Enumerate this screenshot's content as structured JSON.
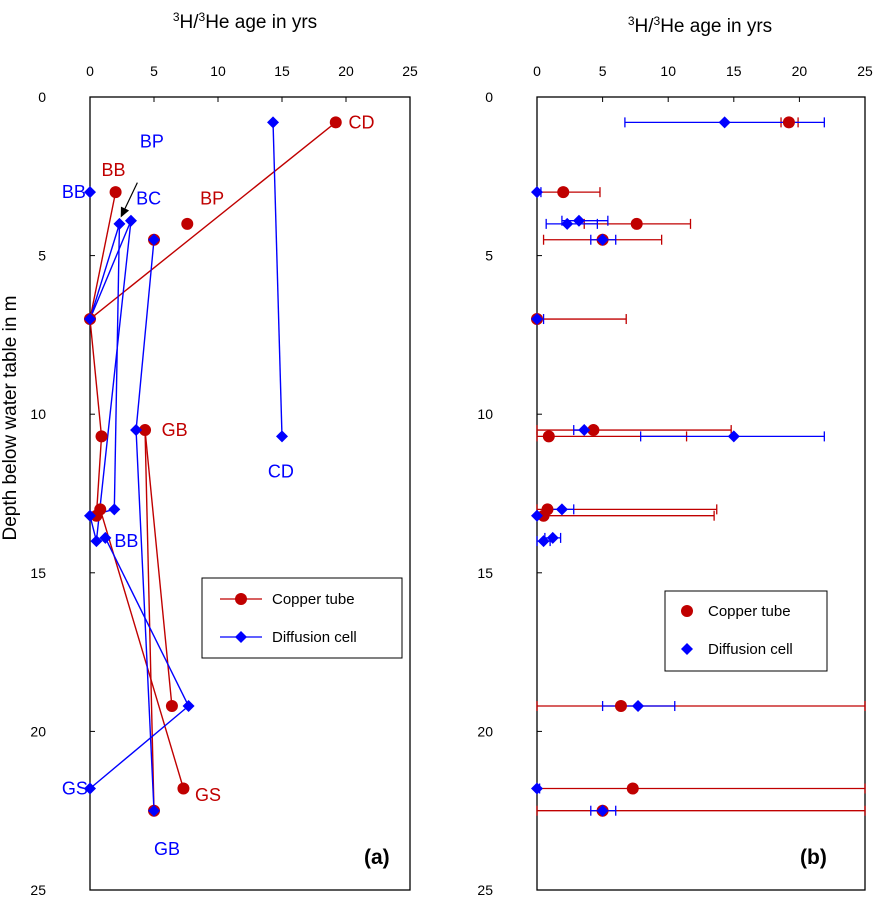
{
  "colors": {
    "copper": "#c00000",
    "diffusion": "#0000ff",
    "axis": "#000000"
  },
  "icons": {
    "copper_marker": "filled-circle",
    "diffusion_marker": "filled-diamond"
  },
  "chart_data": [
    {
      "type": "scatter",
      "panel_label": "(a)",
      "xlabel_prefix": "3",
      "xlabel_mid": "H/",
      "xlabel_sup2": "3",
      "xlabel_suffix": "He  age in yrs",
      "ylabel": "Depth below water table in m",
      "xlim": [
        0,
        25
      ],
      "ylim": [
        0,
        25
      ],
      "y_inverted": true,
      "x_ticks": [
        "0",
        "5",
        "10",
        "15",
        "20",
        "25"
      ],
      "y_ticks": [
        "0",
        "5",
        "10",
        "15",
        "20",
        "25"
      ],
      "legend": {
        "position": "lower-right",
        "entries": [
          "Copper tube",
          "Diffusion cell"
        ]
      },
      "series": [
        {
          "name": "Copper tube",
          "role": "copper",
          "lines": true,
          "points": [
            {
              "x": 19.2,
              "y": 0.8
            },
            {
              "x": 2.0,
              "y": 3.0
            },
            {
              "x": 7.6,
              "y": 4.0
            },
            {
              "x": 5.0,
              "y": 4.5
            },
            {
              "x": 0.0,
              "y": 7.0
            },
            {
              "x": 4.3,
              "y": 10.5
            },
            {
              "x": 0.9,
              "y": 10.7
            },
            {
              "x": 0.8,
              "y": 13.0
            },
            {
              "x": 0.5,
              "y": 13.2
            },
            {
              "x": 6.4,
              "y": 19.2
            },
            {
              "x": 7.3,
              "y": 21.8
            },
            {
              "x": 5.0,
              "y": 22.5
            }
          ],
          "segments": [
            [
              [
                19.2,
                0.8
              ],
              [
                0.0,
                7.0
              ]
            ],
            [
              [
                2.0,
                3.0
              ],
              [
                0.0,
                7.0
              ]
            ],
            [
              [
                0.0,
                7.0
              ],
              [
                0.9,
                10.7
              ]
            ],
            [
              [
                0.9,
                10.7
              ],
              [
                0.5,
                13.2
              ]
            ],
            [
              [
                0.8,
                13.0
              ],
              [
                7.3,
                21.8
              ]
            ],
            [
              [
                4.3,
                10.5
              ],
              [
                6.4,
                19.2
              ]
            ],
            [
              [
                4.3,
                10.5
              ],
              [
                5.0,
                22.5
              ]
            ]
          ]
        },
        {
          "name": "Diffusion cell",
          "role": "diffusion",
          "lines": true,
          "points": [
            {
              "x": 14.3,
              "y": 0.8
            },
            {
              "x": 0.0,
              "y": 3.0
            },
            {
              "x": 2.3,
              "y": 4.0
            },
            {
              "x": 3.2,
              "y": 3.9
            },
            {
              "x": 5.0,
              "y": 4.5
            },
            {
              "x": 0.0,
              "y": 7.0
            },
            {
              "x": 3.6,
              "y": 10.5
            },
            {
              "x": 15.0,
              "y": 10.7
            },
            {
              "x": 1.9,
              "y": 13.0
            },
            {
              "x": 0.0,
              "y": 13.2
            },
            {
              "x": 0.5,
              "y": 14.0
            },
            {
              "x": 1.2,
              "y": 13.9
            },
            {
              "x": 7.7,
              "y": 19.2
            },
            {
              "x": 0.0,
              "y": 21.8
            },
            {
              "x": 5.0,
              "y": 22.5
            }
          ],
          "segments": [
            [
              [
                14.3,
                0.8
              ],
              [
                15.0,
                10.7
              ]
            ],
            [
              [
                0.0,
                7.0
              ],
              [
                2.3,
                4.0
              ]
            ],
            [
              [
                0.0,
                7.0
              ],
              [
                3.2,
                3.9
              ]
            ],
            [
              [
                2.3,
                4.0
              ],
              [
                1.9,
                13.0
              ]
            ],
            [
              [
                3.2,
                3.9
              ],
              [
                0.5,
                14.0
              ]
            ],
            [
              [
                5.0,
                4.5
              ],
              [
                3.6,
                10.5
              ]
            ],
            [
              [
                3.6,
                10.5
              ],
              [
                5.0,
                22.5
              ]
            ],
            [
              [
                0.0,
                13.2
              ],
              [
                1.9,
                13.0
              ]
            ],
            [
              [
                0.0,
                13.2
              ],
              [
                0.5,
                14.0
              ]
            ],
            [
              [
                1.2,
                13.9
              ],
              [
                7.7,
                19.2
              ]
            ],
            [
              [
                7.7,
                19.2
              ],
              [
                0.0,
                21.8
              ]
            ]
          ]
        }
      ],
      "annotations": [
        {
          "text": "CD",
          "role": "copper",
          "x": 20.2,
          "y": 0.8
        },
        {
          "text": "BB",
          "role": "copper",
          "x": 0.9,
          "y": 2.3
        },
        {
          "text": "BP",
          "role": "copper",
          "x": 8.6,
          "y": 3.2
        },
        {
          "text": "GB",
          "role": "copper",
          "x": 5.6,
          "y": 10.5
        },
        {
          "text": "GS",
          "role": "copper",
          "x": 8.2,
          "y": 22.0
        },
        {
          "text": "BB",
          "role": "diffusion",
          "x": -2.2,
          "y": 3.0
        },
        {
          "text": "BP",
          "role": "diffusion",
          "x": 3.9,
          "y": 1.4
        },
        {
          "text": "BC",
          "role": "diffusion",
          "x": 3.6,
          "y": 3.2
        },
        {
          "text": "CD",
          "role": "diffusion",
          "x": 13.9,
          "y": 11.8
        },
        {
          "text": "BB",
          "role": "diffusion",
          "x": 1.9,
          "y": 14.0
        },
        {
          "text": "GS",
          "role": "diffusion",
          "x": -2.2,
          "y": 21.8
        },
        {
          "text": "GB",
          "role": "diffusion",
          "x": 5.0,
          "y": 23.7
        }
      ],
      "arrow": {
        "from": [
          3.7,
          2.7
        ],
        "to": [
          2.4,
          3.8
        ]
      }
    },
    {
      "type": "scatter",
      "panel_label": "(b)",
      "xlabel_prefix": "3",
      "xlabel_mid": "H/",
      "xlabel_sup2": "3",
      "xlabel_suffix": "He  age in yrs",
      "xlim": [
        0,
        25
      ],
      "ylim": [
        0,
        25
      ],
      "y_inverted": true,
      "x_ticks": [
        "0",
        "5",
        "10",
        "15",
        "20",
        "25"
      ],
      "y_ticks": [
        "0",
        "5",
        "10",
        "15",
        "20",
        "25"
      ],
      "legend": {
        "position": "lower-right",
        "entries": [
          "Copper tube",
          "Diffusion cell"
        ]
      },
      "series": [
        {
          "name": "Copper tube",
          "role": "copper",
          "lines": false,
          "points": [
            {
              "x": 19.2,
              "y": 0.8,
              "xerr": [
                18.6,
                19.9
              ]
            },
            {
              "x": 2.0,
              "y": 3.0,
              "xerr": [
                0.0,
                4.8
              ]
            },
            {
              "x": 7.6,
              "y": 4.0,
              "xerr": [
                3.6,
                11.7
              ]
            },
            {
              "x": 5.0,
              "y": 4.5,
              "xerr": [
                0.5,
                9.5
              ]
            },
            {
              "x": 0.0,
              "y": 7.0,
              "xerr": [
                0.0,
                6.8
              ]
            },
            {
              "x": 4.3,
              "y": 10.5,
              "xerr": [
                0.0,
                14.8
              ]
            },
            {
              "x": 0.9,
              "y": 10.7,
              "xerr": [
                0.0,
                11.4
              ]
            },
            {
              "x": 0.8,
              "y": 13.0,
              "xerr": [
                0.0,
                13.7
              ]
            },
            {
              "x": 0.5,
              "y": 13.2,
              "xerr": [
                0.0,
                13.5
              ]
            },
            {
              "x": 6.4,
              "y": 19.2,
              "xerr": [
                0.0,
                25.0
              ]
            },
            {
              "x": 7.3,
              "y": 21.8,
              "xerr": [
                0.0,
                25.0
              ]
            },
            {
              "x": 5.0,
              "y": 22.5,
              "xerr": [
                0.0,
                25.0
              ]
            }
          ]
        },
        {
          "name": "Diffusion cell",
          "role": "diffusion",
          "lines": false,
          "points": [
            {
              "x": 14.3,
              "y": 0.8,
              "xerr": [
                6.7,
                21.9
              ]
            },
            {
              "x": 0.0,
              "y": 3.0,
              "xerr": [
                0.0,
                0.3
              ]
            },
            {
              "x": 2.3,
              "y": 4.0,
              "xerr": [
                0.7,
                4.6
              ]
            },
            {
              "x": 3.2,
              "y": 3.9,
              "xerr": [
                1.9,
                5.4
              ]
            },
            {
              "x": 5.0,
              "y": 4.5,
              "xerr": [
                4.1,
                6.0
              ]
            },
            {
              "x": 0.0,
              "y": 7.0,
              "xerr": [
                0.0,
                0.5
              ]
            },
            {
              "x": 3.6,
              "y": 10.5,
              "xerr": [
                2.8,
                4.5
              ]
            },
            {
              "x": 15.0,
              "y": 10.7,
              "xerr": [
                7.9,
                21.9
              ]
            },
            {
              "x": 1.9,
              "y": 13.0,
              "xerr": [
                1.0,
                2.8
              ]
            },
            {
              "x": 0.0,
              "y": 13.2,
              "xerr": [
                0.0,
                0.3
              ]
            },
            {
              "x": 0.5,
              "y": 14.0,
              "xerr": [
                0.0,
                1.0
              ]
            },
            {
              "x": 1.2,
              "y": 13.9,
              "xerr": [
                0.6,
                1.8
              ]
            },
            {
              "x": 7.7,
              "y": 19.2,
              "xerr": [
                5.0,
                10.5
              ]
            },
            {
              "x": 0.0,
              "y": 21.8,
              "xerr": [
                0.0,
                0.2
              ]
            },
            {
              "x": 5.0,
              "y": 22.5,
              "xerr": [
                4.1,
                6.0
              ]
            }
          ]
        }
      ]
    }
  ]
}
